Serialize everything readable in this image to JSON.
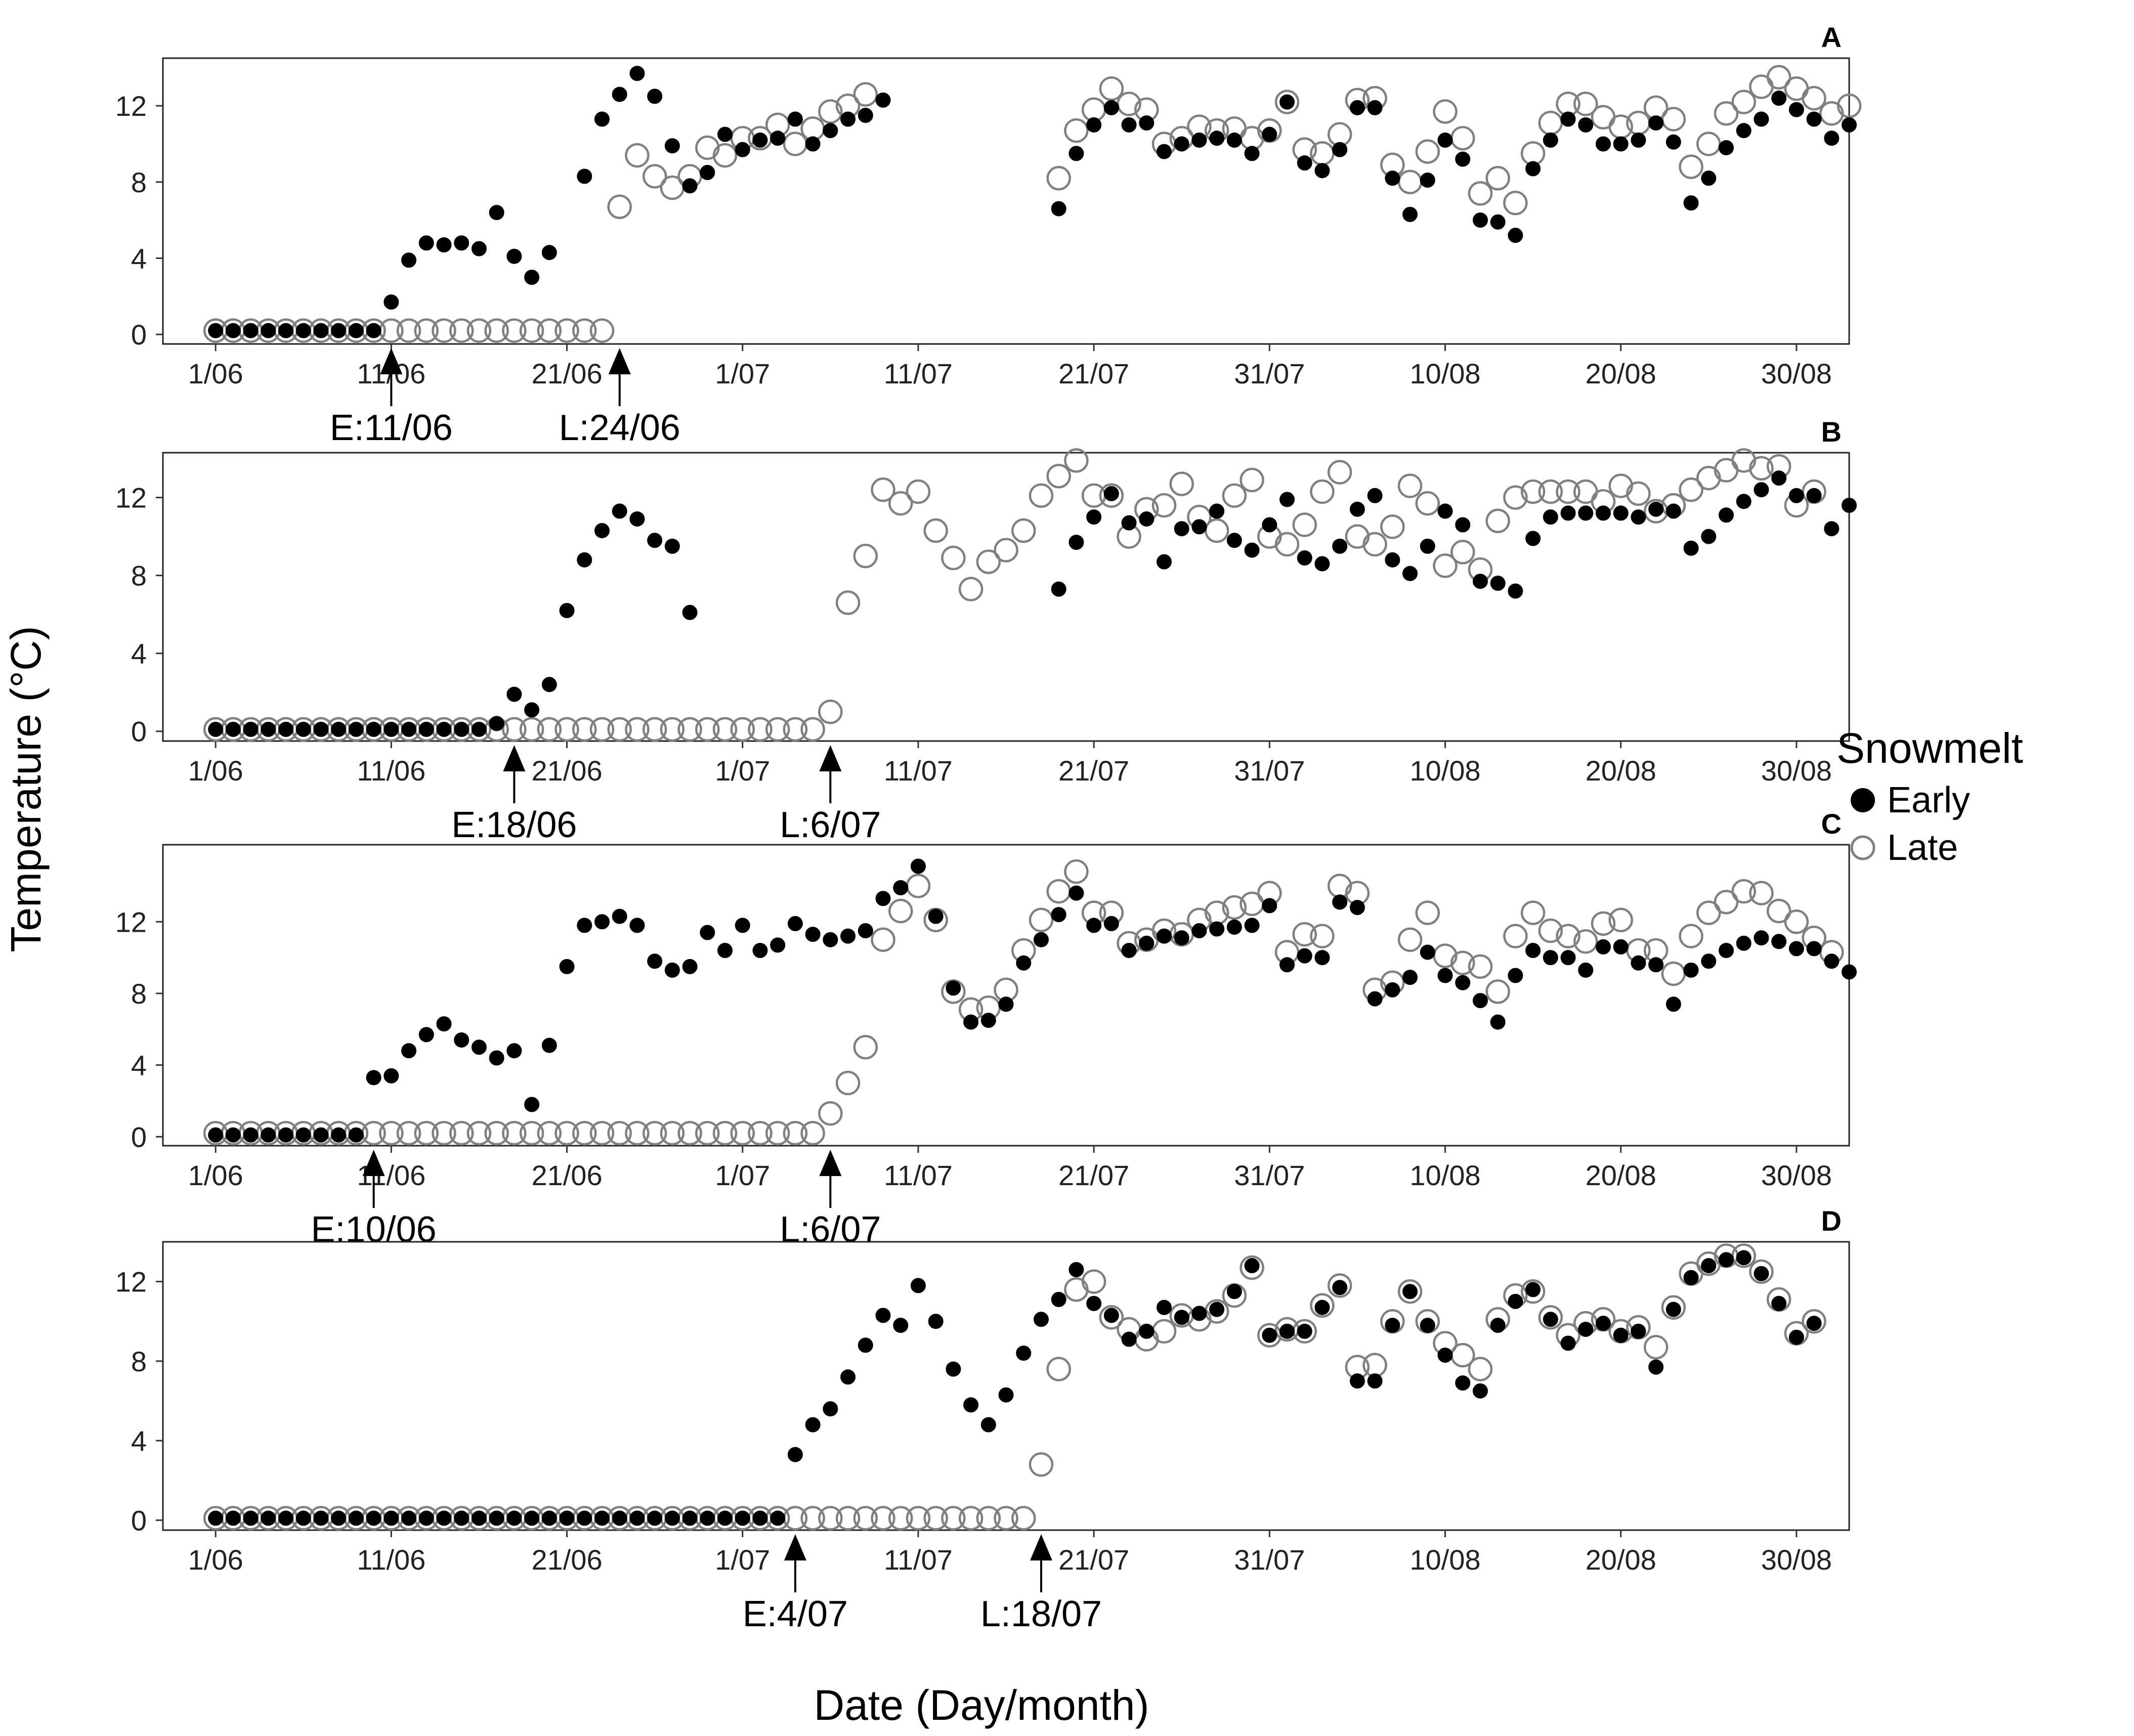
{
  "chart_data": {
    "type": "scatter",
    "xlabel": "Date (Day/month)",
    "ylabel": "Temperature (°C)",
    "x_unit": "date (2017 season, Jun–Aug)",
    "x_range": [
      "2017-05-29",
      "2017-09-02"
    ],
    "x_ticks": [
      {
        "date": "2017-06-01",
        "label": "1/06"
      },
      {
        "date": "2017-06-11",
        "label": "11/06"
      },
      {
        "date": "2017-06-21",
        "label": "21/06"
      },
      {
        "date": "2017-07-01",
        "label": "1/07"
      },
      {
        "date": "2017-07-11",
        "label": "11/07"
      },
      {
        "date": "2017-07-21",
        "label": "21/07"
      },
      {
        "date": "2017-07-31",
        "label": "31/07"
      },
      {
        "date": "2017-08-10",
        "label": "10/08"
      },
      {
        "date": "2017-08-20",
        "label": "20/08"
      },
      {
        "date": "2017-08-30",
        "label": "30/08"
      }
    ],
    "grid": false,
    "legend": {
      "title": "Snowmelt",
      "placement": "right",
      "entries": [
        {
          "name": "Early",
          "marker": "filled-circle",
          "color": "#000000"
        },
        {
          "name": "Late",
          "marker": "open-circle",
          "color": "#808080"
        }
      ]
    },
    "colors": {
      "early": "#000000",
      "late": "#808080"
    },
    "panels": [
      {
        "label": "A",
        "ylim": [
          -0.5,
          14.5
        ],
        "y_ticks": [
          0,
          4,
          8,
          12
        ],
        "markers": [
          {
            "label": "E:11/06",
            "date": "2017-06-11"
          },
          {
            "label": "L:24/06",
            "date": "2017-06-24"
          }
        ],
        "series": [
          {
            "name": "Early",
            "start": "2017-06-01",
            "values": [
              0.2,
              0.2,
              0.2,
              0.2,
              0.2,
              0.2,
              0.2,
              0.2,
              0.2,
              0.2,
              1.7,
              3.9,
              4.8,
              4.7,
              4.8,
              4.5,
              6.4,
              4.1,
              3.0,
              4.3,
              null,
              8.3,
              11.3,
              12.6,
              13.7,
              12.5,
              9.9,
              7.8,
              8.5,
              10.5,
              9.7,
              10.2,
              10.3,
              11.3,
              10.0,
              10.7,
              11.3,
              11.5,
              12.3,
              null,
              null,
              null,
              null,
              null,
              null,
              null,
              null,
              null,
              6.6,
              9.5,
              11.0,
              11.9,
              11.0,
              11.1,
              9.6,
              10.0,
              10.2,
              10.3,
              10.2,
              9.5,
              10.5,
              12.2,
              9.0,
              8.6,
              9.7,
              11.9,
              11.9,
              8.2,
              6.3,
              8.1,
              10.2,
              9.2,
              6.0,
              5.9,
              5.2,
              8.7,
              10.2,
              11.3,
              11.0,
              10.0,
              10.0,
              10.2,
              11.1,
              10.1,
              6.9,
              8.2,
              9.8,
              10.7,
              11.3,
              12.4,
              11.8,
              11.3,
              10.3,
              11.0
            ]
          },
          {
            "name": "Late",
            "start": "2017-06-01",
            "values": [
              0.2,
              0.2,
              0.2,
              0.2,
              0.2,
              0.2,
              0.2,
              0.2,
              0.2,
              0.2,
              0.2,
              0.2,
              0.2,
              0.2,
              0.2,
              0.2,
              0.2,
              0.2,
              0.2,
              0.2,
              0.2,
              0.2,
              0.2,
              6.7,
              9.4,
              8.3,
              7.7,
              8.3,
              9.8,
              9.4,
              10.3,
              10.3,
              11.0,
              10.0,
              10.8,
              11.7,
              12.0,
              12.6,
              null,
              null,
              null,
              null,
              null,
              null,
              null,
              null,
              null,
              null,
              8.2,
              10.7,
              11.8,
              12.9,
              12.1,
              11.8,
              10.0,
              10.3,
              10.9,
              10.7,
              10.8,
              10.3,
              10.7,
              12.2,
              9.7,
              9.5,
              10.5,
              12.3,
              12.4,
              8.9,
              8.0,
              9.6,
              11.7,
              10.3,
              7.4,
              8.2,
              6.9,
              9.5,
              11.1,
              12.1,
              12.1,
              11.4,
              10.9,
              11.1,
              11.9,
              11.3,
              8.8,
              10.0,
              11.6,
              12.2,
              13.0,
              13.5,
              12.9,
              12.4,
              11.6,
              12.0
            ]
          }
        ]
      },
      {
        "label": "B",
        "ylim": [
          -0.5,
          14.3
        ],
        "y_ticks": [
          0,
          4,
          8,
          12
        ],
        "markers": [
          {
            "label": "E:18/06",
            "date": "2017-06-18"
          },
          {
            "label": "L:6/07",
            "date": "2017-07-06"
          }
        ],
        "series": [
          {
            "name": "Early",
            "start": "2017-06-01",
            "values": [
              0.1,
              0.1,
              0.1,
              0.1,
              0.1,
              0.1,
              0.1,
              0.1,
              0.1,
              0.1,
              0.1,
              0.1,
              0.1,
              0.1,
              0.1,
              0.1,
              0.4,
              1.9,
              1.1,
              2.4,
              6.2,
              8.8,
              10.3,
              11.3,
              10.9,
              9.8,
              9.5,
              6.1,
              null,
              null,
              null,
              null,
              null,
              null,
              null,
              null,
              null,
              null,
              null,
              null,
              null,
              null,
              null,
              null,
              null,
              null,
              null,
              null,
              7.3,
              9.7,
              11.0,
              12.2,
              10.7,
              10.9,
              8.7,
              10.4,
              10.5,
              11.3,
              9.8,
              9.3,
              10.6,
              11.9,
              8.9,
              8.6,
              9.5,
              11.4,
              12.1,
              8.8,
              8.1,
              9.5,
              11.3,
              10.6,
              7.7,
              7.6,
              7.2,
              9.9,
              11.0,
              11.2,
              11.2,
              11.2,
              11.2,
              11.0,
              11.4,
              11.3,
              9.4,
              10.0,
              11.1,
              11.8,
              12.4,
              13.0,
              12.1,
              12.1,
              10.4,
              11.6
            ]
          },
          {
            "name": "Late",
            "start": "2017-06-01",
            "values": [
              0.1,
              0.1,
              0.1,
              0.1,
              0.1,
              0.1,
              0.1,
              0.1,
              0.1,
              0.1,
              0.1,
              0.1,
              0.1,
              0.1,
              0.1,
              0.1,
              0.1,
              0.1,
              0.1,
              0.1,
              0.1,
              0.1,
              0.1,
              0.1,
              0.1,
              0.1,
              0.1,
              0.1,
              0.1,
              0.1,
              0.1,
              0.1,
              0.1,
              0.1,
              0.1,
              1.0,
              6.6,
              9.0,
              12.4,
              11.7,
              12.3,
              10.3,
              8.9,
              7.3,
              8.7,
              9.3,
              10.3,
              12.1,
              13.1,
              13.9,
              12.1,
              12.1,
              10.0,
              11.4,
              11.6,
              12.7,
              11.0,
              10.3,
              12.1,
              12.9,
              10.0,
              9.6,
              10.6,
              12.3,
              13.3,
              10.0,
              9.6,
              10.5,
              12.6,
              11.7,
              8.5,
              9.2,
              8.3,
              10.8,
              12.0,
              12.3,
              12.3,
              12.3,
              12.3,
              11.8,
              12.6,
              12.2,
              11.3,
              11.6,
              12.4,
              13.0,
              13.4,
              13.9,
              13.5,
              13.6,
              11.6,
              12.3
            ]
          }
        ]
      },
      {
        "label": "C",
        "ylim": [
          -0.5,
          16.3
        ],
        "y_ticks": [
          0,
          4,
          8,
          12
        ],
        "markers": [
          {
            "label": "E:10/06",
            "date": "2017-06-10"
          },
          {
            "label": "L:6/07",
            "date": "2017-07-06"
          }
        ],
        "series": [
          {
            "name": "Early",
            "start": "2017-06-01",
            "values": [
              0.1,
              0.1,
              0.1,
              0.1,
              0.1,
              0.1,
              0.1,
              0.1,
              0.1,
              3.3,
              3.4,
              4.8,
              5.7,
              6.3,
              5.4,
              5.0,
              4.4,
              4.8,
              1.8,
              5.1,
              9.5,
              11.8,
              12.0,
              12.3,
              11.8,
              9.8,
              9.3,
              9.5,
              11.4,
              10.4,
              11.8,
              10.4,
              10.7,
              11.9,
              11.3,
              11.0,
              11.2,
              11.5,
              13.3,
              13.9,
              15.1,
              12.3,
              8.3,
              6.4,
              6.5,
              7.4,
              9.7,
              11.0,
              12.4,
              13.6,
              11.8,
              11.9,
              10.4,
              10.8,
              11.2,
              11.1,
              11.5,
              11.6,
              11.7,
              11.8,
              12.9,
              9.6,
              10.1,
              10.0,
              13.1,
              12.8,
              7.7,
              8.2,
              8.9,
              10.3,
              9.0,
              8.6,
              7.6,
              6.4,
              9.0,
              10.4,
              10.0,
              10.0,
              9.3,
              10.6,
              10.6,
              9.7,
              9.6,
              7.4,
              9.3,
              9.8,
              10.4,
              10.8,
              11.1,
              10.9,
              10.5,
              10.5,
              9.8,
              9.2
            ]
          },
          {
            "name": "Late",
            "start": "2017-06-01",
            "values": [
              0.2,
              0.2,
              0.2,
              0.2,
              0.2,
              0.2,
              0.2,
              0.2,
              0.2,
              0.2,
              0.2,
              0.2,
              0.2,
              0.2,
              0.2,
              0.2,
              0.2,
              0.2,
              0.2,
              0.2,
              0.2,
              0.2,
              0.2,
              0.2,
              0.2,
              0.2,
              0.2,
              0.2,
              0.2,
              0.2,
              0.2,
              0.2,
              0.2,
              0.2,
              0.2,
              1.3,
              3.0,
              5.0,
              11.0,
              12.6,
              14.0,
              12.1,
              8.1,
              7.1,
              7.2,
              8.2,
              10.4,
              12.1,
              13.7,
              14.8,
              12.5,
              12.5,
              10.8,
              11.0,
              11.5,
              11.3,
              12.1,
              12.5,
              12.8,
              13.0,
              13.6,
              10.3,
              11.3,
              11.2,
              14.0,
              13.6,
              8.2,
              8.6,
              11.0,
              12.5,
              10.1,
              9.7,
              9.5,
              8.1,
              11.2,
              12.5,
              11.5,
              11.2,
              10.9,
              11.9,
              12.1,
              10.4,
              10.4,
              9.1,
              11.2,
              12.5,
              13.1,
              13.7,
              13.6,
              12.6,
              12.0,
              11.1,
              10.3
            ]
          }
        ]
      },
      {
        "label": "D",
        "ylim": [
          -0.5,
          14.0
        ],
        "y_ticks": [
          0,
          4,
          8,
          12
        ],
        "markers": [
          {
            "label": "E:4/07",
            "date": "2017-07-04"
          },
          {
            "label": "L:18/07",
            "date": "2017-07-18"
          }
        ],
        "series": [
          {
            "name": "Early",
            "start": "2017-06-01",
            "values": [
              0.1,
              0.1,
              0.1,
              0.1,
              0.1,
              0.1,
              0.1,
              0.1,
              0.1,
              0.1,
              0.1,
              0.1,
              0.1,
              0.1,
              0.1,
              0.1,
              0.1,
              0.1,
              0.1,
              0.1,
              0.1,
              0.1,
              0.1,
              0.1,
              0.1,
              0.1,
              0.1,
              0.1,
              0.1,
              0.1,
              0.1,
              0.1,
              0.1,
              3.3,
              4.8,
              5.6,
              7.2,
              8.8,
              10.3,
              9.8,
              11.8,
              10.0,
              7.6,
              5.8,
              4.8,
              6.3,
              8.4,
              10.1,
              11.1,
              12.6,
              10.9,
              10.3,
              9.1,
              9.5,
              10.7,
              10.2,
              10.4,
              10.6,
              11.5,
              12.8,
              9.3,
              9.5,
              9.5,
              10.7,
              11.7,
              7.0,
              7.0,
              9.8,
              11.5,
              9.8,
              8.3,
              6.9,
              6.5,
              9.8,
              11.0,
              11.6,
              10.1,
              8.9,
              9.6,
              9.9,
              9.3,
              9.5,
              7.7,
              10.6,
              12.2,
              12.8,
              13.1,
              13.2,
              12.4,
              10.9,
              9.2,
              9.9
            ]
          },
          {
            "name": "Late",
            "start": "2017-06-01",
            "values": [
              0.1,
              0.1,
              0.1,
              0.1,
              0.1,
              0.1,
              0.1,
              0.1,
              0.1,
              0.1,
              0.1,
              0.1,
              0.1,
              0.1,
              0.1,
              0.1,
              0.1,
              0.1,
              0.1,
              0.1,
              0.1,
              0.1,
              0.1,
              0.1,
              0.1,
              0.1,
              0.1,
              0.1,
              0.1,
              0.1,
              0.1,
              0.1,
              0.1,
              0.1,
              0.1,
              0.1,
              0.1,
              0.1,
              0.1,
              0.1,
              0.1,
              0.1,
              0.1,
              0.1,
              0.1,
              0.1,
              0.1,
              2.8,
              7.6,
              11.6,
              12.0,
              10.2,
              9.6,
              9.1,
              9.5,
              10.3,
              10.1,
              10.5,
              11.3,
              12.7,
              9.3,
              9.6,
              9.5,
              10.8,
              11.8,
              7.7,
              7.8,
              10.0,
              11.5,
              10.0,
              8.9,
              8.3,
              7.6,
              10.1,
              11.3,
              11.5,
              10.2,
              9.3,
              9.9,
              10.1,
              9.5,
              9.7,
              8.7,
              10.7,
              12.4,
              12.9,
              13.3,
              13.3,
              12.5,
              11.1,
              9.4,
              10.0
            ]
          }
        ]
      }
    ]
  }
}
